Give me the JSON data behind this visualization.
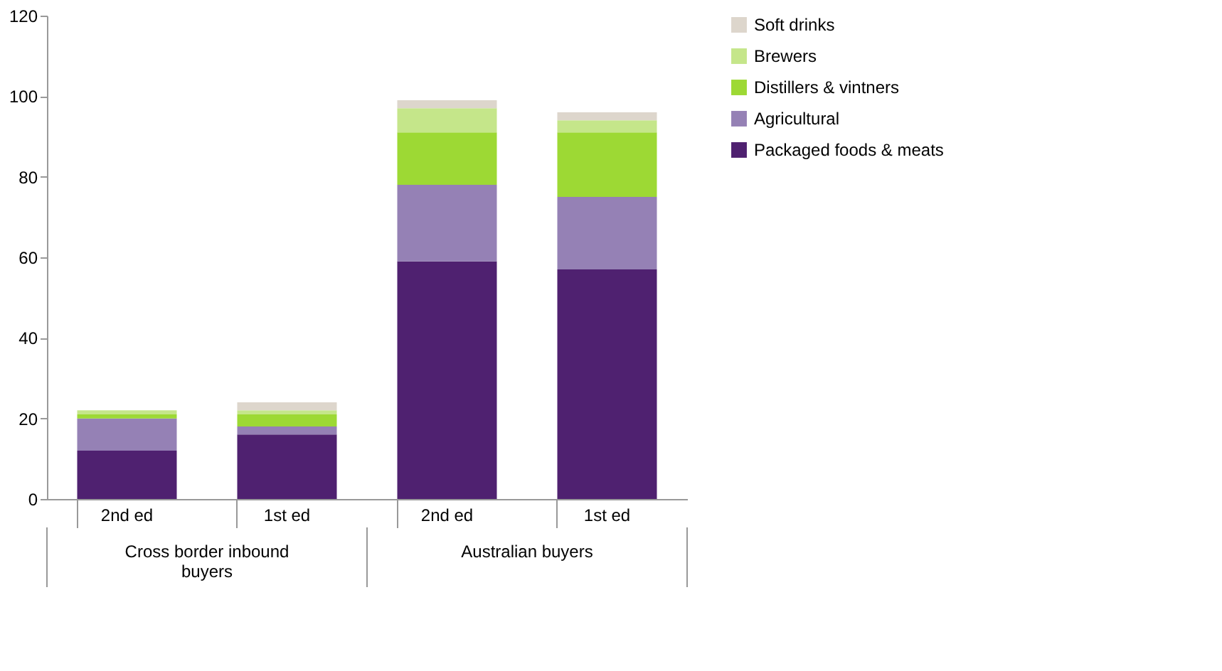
{
  "chart_data": {
    "type": "bar",
    "stacked": true,
    "categories": [
      "2nd ed",
      "1st ed",
      "2nd ed",
      "1st ed"
    ],
    "series": [
      {
        "name": "Packaged foods & meats",
        "color": "#4f2170",
        "values": [
          12,
          16,
          59,
          57
        ]
      },
      {
        "name": "Agricultural",
        "color": "#9581b5",
        "values": [
          8,
          2,
          19,
          18
        ]
      },
      {
        "name": "Distillers & vintners",
        "color": "#9dd934",
        "values": [
          1,
          3,
          13,
          16
        ]
      },
      {
        "name": "Brewers",
        "color": "#c5e68a",
        "values": [
          1,
          1,
          6,
          3
        ]
      },
      {
        "name": "Soft drinks",
        "color": "#ddd6cc",
        "values": [
          0,
          2,
          2,
          2
        ]
      }
    ],
    "annotations": [
      "Cross border inbound buyers",
      "Australian buyers"
    ],
    "ylim": [
      0,
      120
    ],
    "yticks": [
      0,
      20,
      40,
      60,
      80,
      100,
      120
    ],
    "grid": false,
    "legend": "right"
  }
}
